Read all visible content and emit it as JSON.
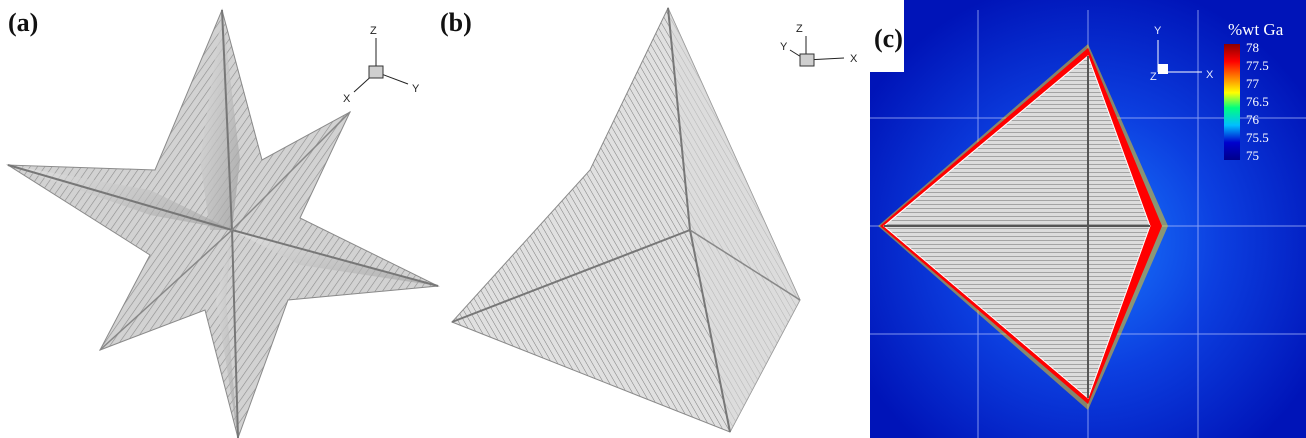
{
  "panels": [
    {
      "label": "(a)",
      "axes": [
        "Z",
        "Y",
        "X"
      ]
    },
    {
      "label": "(b)",
      "axes": [
        "Z",
        "Y",
        "X"
      ]
    },
    {
      "label": "(c)",
      "axes": [
        "Y",
        "X",
        "Z"
      ]
    }
  ],
  "colorbar": {
    "title": "%wt Ga",
    "ticks": [
      "78",
      "77.5",
      "77",
      "76.5",
      "76",
      "75.5",
      "75"
    ],
    "colors": [
      "#8b0000",
      "#ff0000",
      "#ff8c00",
      "#ffff00",
      "#00ff7f",
      "#00bfff",
      "#0000cd",
      "#00008b"
    ]
  },
  "colors": {
    "background_field": "#0a1fd6",
    "dendrite": "#c9c9c9"
  }
}
